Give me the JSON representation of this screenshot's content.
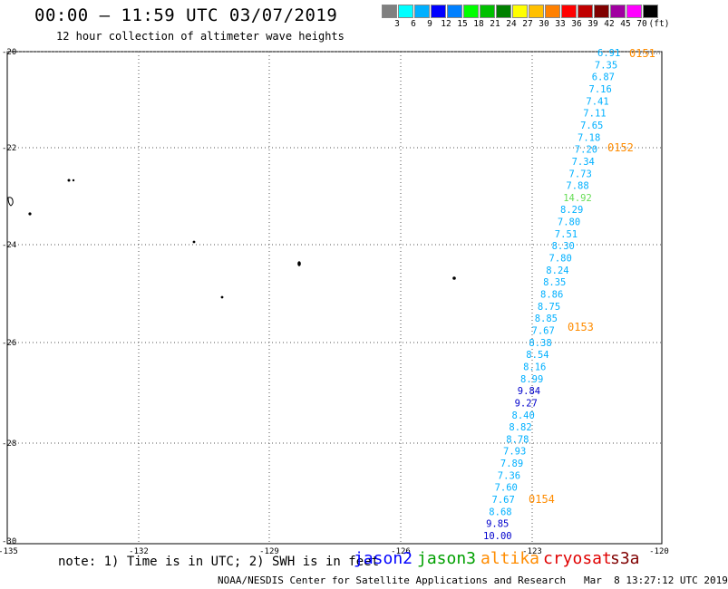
{
  "header": {
    "title": "00:00 – 11:59 UTC 03/07/2019",
    "subtitle": "12 hour collection of altimeter wave heights"
  },
  "legend": {
    "colors": [
      "#808080",
      "#00ffff",
      "#00b0ff",
      "#0000ff",
      "#0080ff",
      "#00ff00",
      "#00c000",
      "#008000",
      "#ffff00",
      "#ffc000",
      "#ff8000",
      "#ff0000",
      "#c00000",
      "#800000",
      "#a000a0",
      "#ff00ff",
      "#000000"
    ],
    "labels": [
      "3",
      "6",
      "9",
      "12",
      "15",
      "18",
      "21",
      "24",
      "27",
      "30",
      "33",
      "36",
      "39",
      "42",
      "45",
      "70",
      "(ft)"
    ]
  },
  "axes": {
    "x_ticks": [
      "-135",
      "-132",
      "-129",
      "-126",
      "-123",
      "-120"
    ],
    "y_ticks": [
      "-20",
      "-22",
      "-24",
      "-26",
      "-28",
      "-30"
    ]
  },
  "track": {
    "values": [
      {
        "v": "6.91",
        "c": "#00b0ff"
      },
      {
        "v": "7.35",
        "c": "#00b0ff"
      },
      {
        "v": "6.87",
        "c": "#00b0ff"
      },
      {
        "v": "7.16",
        "c": "#00b0ff"
      },
      {
        "v": "7.41",
        "c": "#00b0ff"
      },
      {
        "v": "7.11",
        "c": "#00b0ff"
      },
      {
        "v": "7.65",
        "c": "#00b0ff"
      },
      {
        "v": "7.18",
        "c": "#00b0ff"
      },
      {
        "v": "7.20",
        "c": "#00b0ff"
      },
      {
        "v": "7.34",
        "c": "#00b0ff"
      },
      {
        "v": "7.73",
        "c": "#00b0ff"
      },
      {
        "v": "7.88",
        "c": "#00b0ff"
      },
      {
        "v": "14.92",
        "c": "#66dd55"
      },
      {
        "v": "8.29",
        "c": "#00b0ff"
      },
      {
        "v": "7.80",
        "c": "#00b0ff"
      },
      {
        "v": "7.51",
        "c": "#00b0ff"
      },
      {
        "v": "8.30",
        "c": "#00b0ff"
      },
      {
        "v": "7.80",
        "c": "#00b0ff"
      },
      {
        "v": "8.24",
        "c": "#00b0ff"
      },
      {
        "v": "8.35",
        "c": "#00b0ff"
      },
      {
        "v": "8.86",
        "c": "#00b0ff"
      },
      {
        "v": "8.75",
        "c": "#00b0ff"
      },
      {
        "v": "8.85",
        "c": "#00b0ff"
      },
      {
        "v": "7.67",
        "c": "#00b0ff"
      },
      {
        "v": "8.38",
        "c": "#00b0ff"
      },
      {
        "v": "8.54",
        "c": "#00b0ff"
      },
      {
        "v": "8.16",
        "c": "#00b0ff"
      },
      {
        "v": "8.99",
        "c": "#00b0ff"
      },
      {
        "v": "9.84",
        "c": "#0000cc"
      },
      {
        "v": "9.27",
        "c": "#0000cc"
      },
      {
        "v": "8.40",
        "c": "#00b0ff"
      },
      {
        "v": "8.82",
        "c": "#00b0ff"
      },
      {
        "v": "8.78",
        "c": "#00b0ff"
      },
      {
        "v": "7.93",
        "c": "#00b0ff"
      },
      {
        "v": "7.89",
        "c": "#00b0ff"
      },
      {
        "v": "7.36",
        "c": "#00b0ff"
      },
      {
        "v": "7.60",
        "c": "#00b0ff"
      },
      {
        "v": "7.67",
        "c": "#00b0ff"
      },
      {
        "v": "8.68",
        "c": "#00b0ff"
      },
      {
        "v": "9.85",
        "c": "#0000cc"
      },
      {
        "v": "10.00",
        "c": "#0000cc"
      }
    ],
    "time_labels": [
      "0151",
      "0152",
      "0153",
      "0154"
    ],
    "time_color": "#ff8c00"
  },
  "notes": {
    "note": "note: 1) Time is in UTC; 2) SWH is in feet",
    "satellites": [
      {
        "name": "jason2",
        "color": "#0000ff"
      },
      {
        "name": "jason3",
        "color": "#00a000"
      },
      {
        "name": "altika",
        "color": "#ff8c00"
      },
      {
        "name": "cryosat",
        "color": "#e00000"
      },
      {
        "name": "s3a",
        "color": "#800000"
      }
    ],
    "footer": "NOAA/NESDIS Center for Satellite Applications and Research   Mar  8 13:27:12 UTC 2019"
  }
}
